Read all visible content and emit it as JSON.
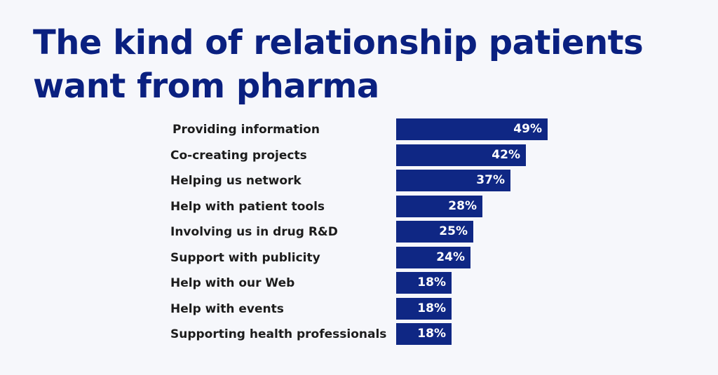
{
  "title": "The kind of relationship patients want from pharma",
  "colors": {
    "bar": "#0f2784",
    "title": "#0a2080",
    "background": "#f6f7fb"
  },
  "chart_data": {
    "type": "bar",
    "orientation": "horizontal",
    "title": "The kind of relationship patients want from pharma",
    "categories": [
      "Providing information",
      "Co-creating projects",
      "Helping us network",
      "Help with patient tools",
      "Involving us in drug R&D",
      "Support with publicity",
      "Help with our Web",
      "Help with events",
      "Supporting health professionals"
    ],
    "values": [
      49,
      42,
      37,
      28,
      25,
      24,
      18,
      18,
      18
    ],
    "value_labels": [
      "49%",
      "42%",
      "37%",
      "28%",
      "25%",
      "24%",
      "18%",
      "18%",
      "18%"
    ],
    "unit": "%",
    "xlabel": "",
    "ylabel": "",
    "grid": false
  }
}
